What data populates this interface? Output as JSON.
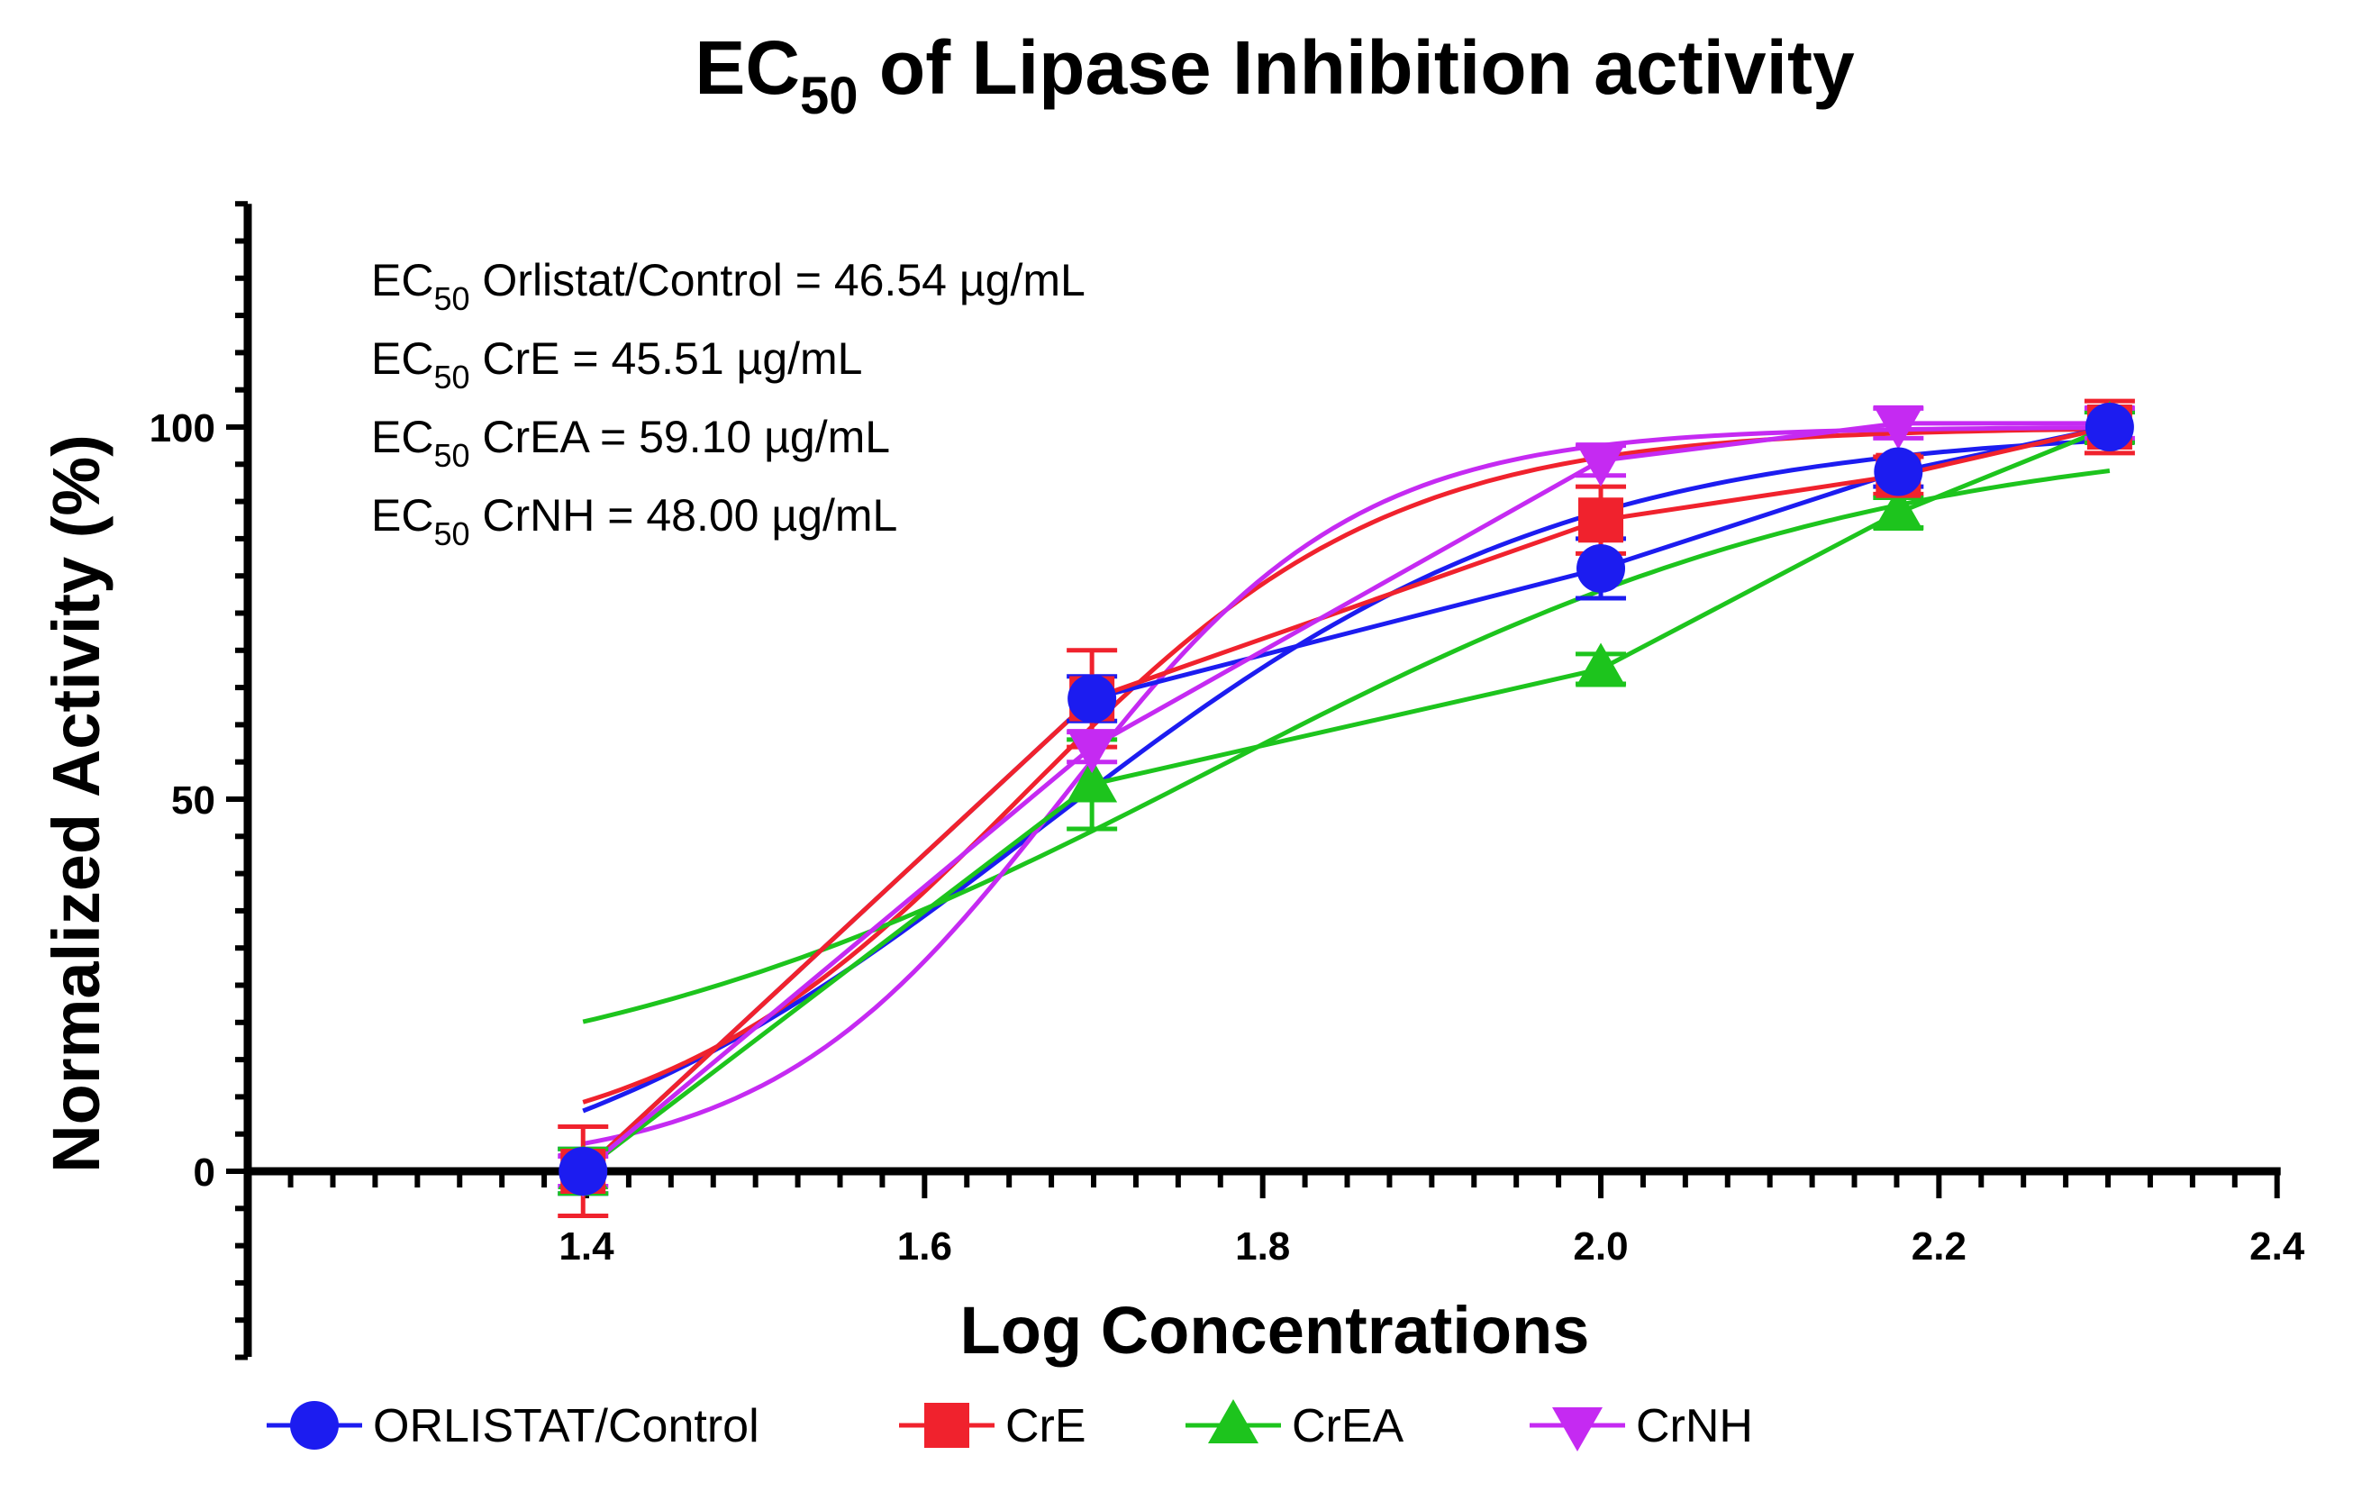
{
  "chart_data": {
    "type": "line",
    "title": "EC50 of Lipase Inhibition activity",
    "title_parts": {
      "pre": "EC",
      "sub": "50",
      "post": " of Lipase Inhibition activity"
    },
    "xlabel": "Log Concentrations",
    "ylabel": "Normalized Activity (%)",
    "xlim": [
      1.2,
      2.4
    ],
    "ylim": [
      -25,
      130
    ],
    "x_ticks": [
      1.4,
      1.6,
      1.8,
      2.0,
      2.2,
      2.4
    ],
    "x_tick_labels": [
      "1.4",
      "1.6",
      "1.8",
      "2.0",
      "2.2",
      "2.4"
    ],
    "y_ticks": [
      0,
      50,
      100
    ],
    "y_tick_labels": [
      "0",
      "50",
      "100"
    ],
    "annotations": [
      {
        "pre": "EC",
        "sub": "50",
        "text": " Orlistat/Control = 46.54 µg/mL"
      },
      {
        "pre": "EC",
        "sub": "50",
        "text": " CrE = 45.51 µg/mL"
      },
      {
        "pre": "EC",
        "sub": "50",
        "text": " CrEA = 59.10 µg/mL"
      },
      {
        "pre": "EC",
        "sub": "50",
        "text": " CrNH = 48.00 µg/mL"
      }
    ],
    "x": [
      1.398,
      1.699,
      2.0,
      2.176,
      2.301
    ],
    "series": [
      {
        "name": "ORLISTAT/Control",
        "color": "#1c1cf0",
        "marker": "circle",
        "values": [
          0,
          63.5,
          81,
          94,
          100
        ],
        "errors": [
          3,
          3,
          4,
          2,
          2
        ],
        "fit": {
          "bottom": -8,
          "top": 100,
          "logec50": 1.668,
          "hill": 2.8
        }
      },
      {
        "name": "CrE",
        "color": "#f0222d",
        "marker": "square",
        "values": [
          0,
          63.5,
          87.5,
          93.5,
          100
        ],
        "errors": [
          6,
          6.5,
          4.5,
          2.5,
          3.5
        ],
        "fit": {
          "bottom": 1,
          "top": 100,
          "logec50": 1.658,
          "hill": 4.0
        }
      },
      {
        "name": "CrEA",
        "color": "#1dc41d",
        "marker": "triangle-up",
        "values": [
          0,
          52,
          67.5,
          88.5,
          100
        ],
        "errors": [
          3,
          6,
          2,
          2,
          2
        ],
        "fit": {
          "bottom": 8,
          "top": 100,
          "logec50": 1.771,
          "hill": 2.2
        }
      },
      {
        "name": "CrNH",
        "color": "#c52af2",
        "marker": "triangle-down",
        "values": [
          0,
          57,
          95.5,
          100.5,
          100.5
        ],
        "errors": [
          2,
          2,
          2,
          2,
          2
        ],
        "fit": {
          "bottom": 0,
          "top": 100,
          "logec50": 1.681,
          "hill": 5.0
        }
      }
    ],
    "legend_position": "bottom"
  }
}
